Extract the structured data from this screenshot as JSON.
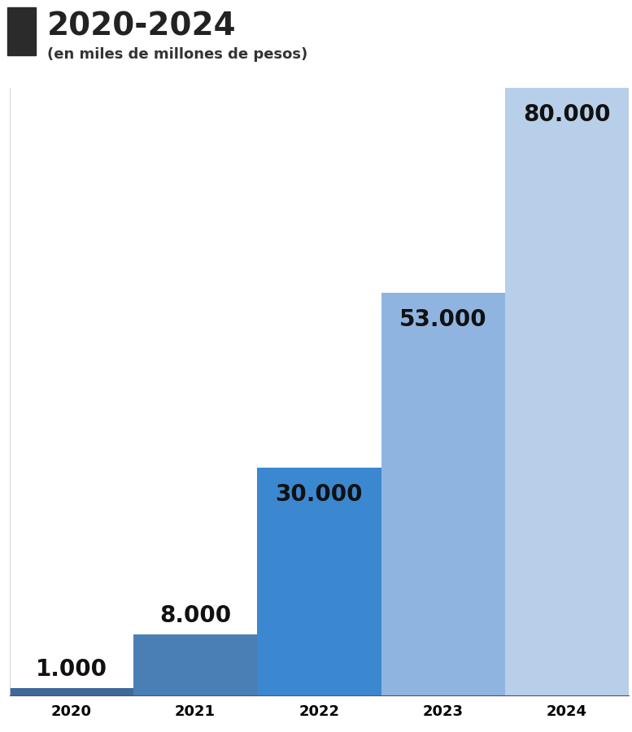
{
  "chart_data": {
    "type": "bar",
    "title": "2020-2024",
    "subtitle": "(en miles de millones de pesos)",
    "categories": [
      "2020",
      "2021",
      "2022",
      "2023",
      "2024"
    ],
    "values": [
      1000,
      8000,
      30000,
      53000,
      80000
    ],
    "value_labels": [
      "1.000",
      "8.000",
      "30.000",
      "53.000",
      "80.000"
    ],
    "colors": [
      "#3d6a9a",
      "#4a7fb5",
      "#3b88d0",
      "#8fb4e0",
      "#b8cfea"
    ],
    "ylim": [
      0,
      80000
    ],
    "yticks": [],
    "grid": false,
    "data_labels": true,
    "tick_labels": "x"
  }
}
